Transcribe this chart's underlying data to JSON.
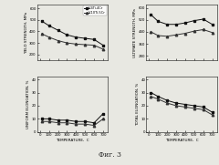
{
  "temp": [
    20,
    100,
    200,
    300,
    400,
    500,
    600,
    700
  ],
  "yield_series1": [
    490,
    450,
    410,
    370,
    350,
    340,
    330,
    280
  ],
  "yield_series2": [
    380,
    350,
    320,
    300,
    290,
    285,
    280,
    245
  ],
  "ult_series1": [
    555,
    510,
    490,
    490,
    500,
    515,
    525,
    490
  ],
  "ult_series2": [
    440,
    415,
    410,
    420,
    430,
    445,
    455,
    435
  ],
  "unif_series1": [
    10,
    10,
    9,
    9,
    8,
    8,
    7,
    14
  ],
  "unif_series2": [
    8,
    8,
    7,
    7,
    6,
    6,
    5,
    10
  ],
  "tot_series1": [
    30,
    27,
    24,
    22,
    21,
    20,
    19,
    15
  ],
  "tot_series2": [
    27,
    25,
    22,
    20,
    19,
    18,
    17,
    13
  ],
  "legend1": "V-4Ti-4Cr",
  "legend2": "V-10Ti-5Cr",
  "ylabel_tl": "YIELD STRENGTH, MPa",
  "ylabel_tr": "ULTIMATE STRENGTH, MPa",
  "ylabel_bl": "UNIFORM ELONGATION, %",
  "ylabel_br": "TOTAL ELONGATION, %",
  "xlabel": "TEMPERATURE,  C",
  "yticks_tl": [
    200,
    300,
    400,
    500,
    600
  ],
  "ylim_tl": [
    150,
    630
  ],
  "yticks_tr": [
    280,
    360,
    440,
    520,
    600
  ],
  "ylim_tr": [
    250,
    620
  ],
  "yticks_bl": [
    0,
    10,
    20,
    30,
    40
  ],
  "ylim_bl": [
    0,
    42
  ],
  "yticks_br": [
    0,
    10,
    20,
    30,
    40
  ],
  "ylim_br": [
    0,
    42
  ],
  "xticks": [
    0,
    100,
    200,
    300,
    400,
    500,
    600,
    700
  ],
  "xlim": [
    -30,
    750
  ],
  "line_color1": "#111111",
  "line_color2": "#333333",
  "marker1": "s",
  "marker2": "^",
  "caption": "Фиг. 3",
  "bg_color": "#e8e8e2"
}
